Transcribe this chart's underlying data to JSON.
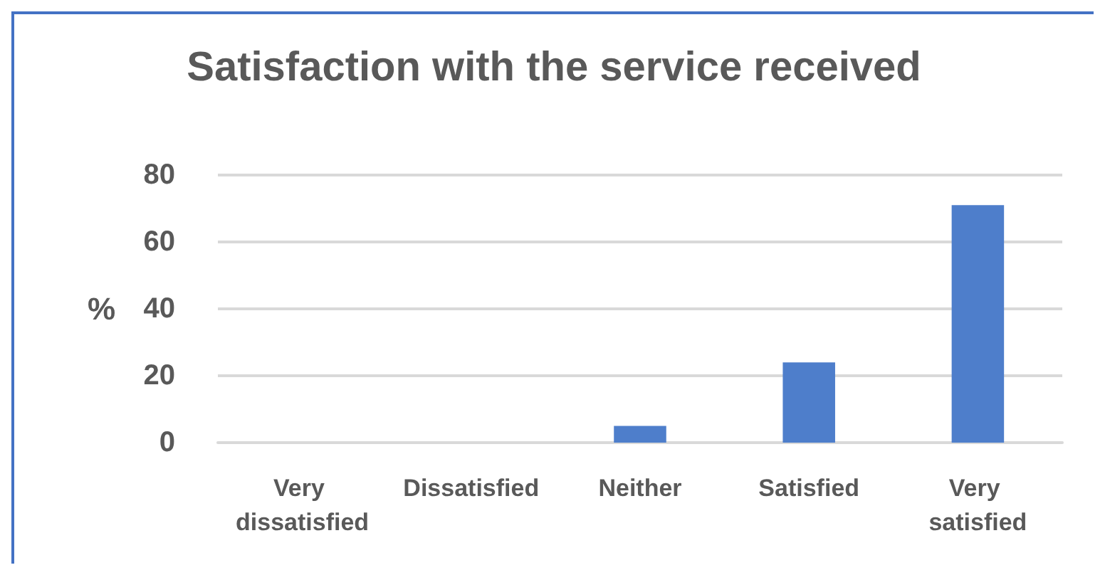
{
  "chart_data": {
    "type": "bar",
    "title": "Satisfaction with the service received",
    "ylabel": "%",
    "categories": [
      "Very dissatisfied",
      "Dissatisfied",
      "Neither",
      "Satisfied",
      "Very satisfied"
    ],
    "values": [
      0,
      0,
      5,
      24,
      71
    ],
    "color": "#4e7ecb",
    "ylim": [
      0,
      80
    ],
    "yticks": [
      0,
      20,
      40,
      60,
      80
    ],
    "grid": "y"
  }
}
